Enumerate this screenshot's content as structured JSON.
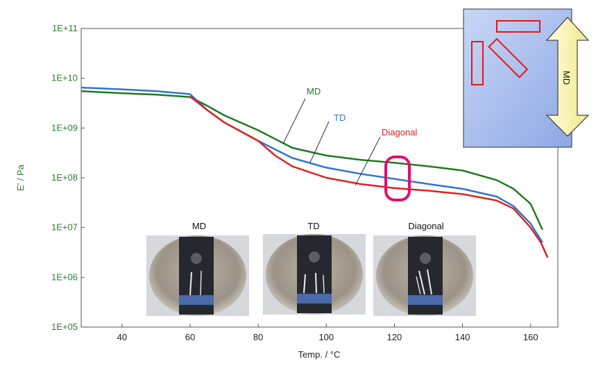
{
  "chart_data": {
    "type": "line",
    "ylabel": "E' / Pa",
    "xlabel": "Temp. / °C",
    "xlim": [
      28,
      168
    ],
    "ylim": [
      100000,
      100000000000
    ],
    "yscale": "log",
    "x_ticks": [
      40,
      60,
      80,
      100,
      120,
      140,
      160
    ],
    "y_tick_labels": [
      "1E+05",
      "1E+06",
      "1E+07",
      "1E+08",
      "1E+09",
      "1E+10",
      "1E+11"
    ],
    "grid": false,
    "series": [
      {
        "name": "MD",
        "color": "#1f7a1f",
        "points": [
          [
            28,
            5500000000
          ],
          [
            40,
            5000000000
          ],
          [
            50,
            4700000000
          ],
          [
            60,
            4200000000
          ],
          [
            65,
            2800000000
          ],
          [
            70,
            1800000000
          ],
          [
            80,
            900000000
          ],
          [
            90,
            400000000
          ],
          [
            100,
            280000000
          ],
          [
            110,
            230000000
          ],
          [
            120,
            200000000
          ],
          [
            130,
            170000000
          ],
          [
            140,
            140000000
          ],
          [
            150,
            90000000
          ],
          [
            155,
            60000000
          ],
          [
            160,
            30000000
          ],
          [
            163.5,
            9000000
          ]
        ]
      },
      {
        "name": "TD",
        "color": "#2f74d0",
        "points": [
          [
            28,
            6500000000
          ],
          [
            40,
            6000000000
          ],
          [
            50,
            5500000000
          ],
          [
            60,
            4800000000
          ],
          [
            65,
            2300000000
          ],
          [
            70,
            1300000000
          ],
          [
            80,
            550000000
          ],
          [
            90,
            250000000
          ],
          [
            100,
            160000000
          ],
          [
            110,
            120000000
          ],
          [
            120,
            95000000
          ],
          [
            130,
            75000000
          ],
          [
            140,
            60000000
          ],
          [
            150,
            42000000
          ],
          [
            155,
            27000000
          ],
          [
            160,
            12000000
          ],
          [
            163.5,
            5000000
          ]
        ]
      },
      {
        "name": "Diagonal",
        "color": "#e02020",
        "points": [
          [
            60,
            4300000000
          ],
          [
            65,
            2300000000
          ],
          [
            70,
            1300000000
          ],
          [
            80,
            550000000
          ],
          [
            85,
            280000000
          ],
          [
            90,
            170000000
          ],
          [
            100,
            100000000
          ],
          [
            110,
            75000000
          ],
          [
            120,
            62000000
          ],
          [
            130,
            55000000
          ],
          [
            140,
            47000000
          ],
          [
            150,
            35000000
          ],
          [
            155,
            24000000
          ],
          [
            160,
            10000000
          ],
          [
            163,
            5000000
          ],
          [
            165,
            2500000
          ]
        ]
      }
    ],
    "annotations": [
      {
        "text": "MD",
        "color": "#1f7a1f"
      },
      {
        "text": "TD",
        "color": "#2f74d0"
      },
      {
        "text": "Diagonal",
        "color": "#e02020"
      }
    ],
    "highlight_marker": {
      "x": 121,
      "y": 100000000,
      "color": "#e0106a"
    },
    "inset_photos": [
      {
        "title": "MD"
      },
      {
        "title": "TD"
      },
      {
        "title": "Diagonal"
      }
    ],
    "orientation_inset": {
      "arrow_label": "MD"
    }
  }
}
